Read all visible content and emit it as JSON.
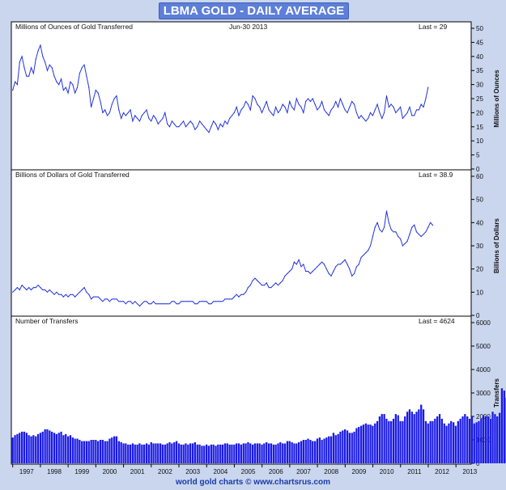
{
  "header": {
    "title": "LBMA GOLD - DAILY AVERAGE"
  },
  "footer": {
    "credit": "world gold charts © www.chartsrus.com"
  },
  "chart_data": [
    {
      "type": "line",
      "title": "Millions of Ounces of Gold Transferred",
      "subtitle": "Jun-30 2013",
      "last_label": "Last = 29",
      "ylabel": "Millions of Ounces",
      "ylim": [
        0,
        50
      ],
      "yticks": [
        0,
        5,
        10,
        15,
        20,
        25,
        30,
        35,
        40,
        45,
        50
      ],
      "x_range": [
        1996.95,
        2013.55
      ],
      "x_start": 1997.0,
      "x_step": 0.0833,
      "values": [
        28,
        31,
        30,
        38,
        40,
        36,
        33,
        33,
        36,
        34,
        39,
        42,
        44,
        40,
        38,
        35,
        37,
        36,
        33,
        31,
        30,
        32,
        28,
        29,
        27,
        31,
        30,
        27,
        29,
        34,
        36,
        37,
        33,
        29,
        22,
        25,
        28,
        27,
        24,
        20,
        21,
        19,
        20,
        23,
        25,
        26,
        21,
        18,
        20,
        19,
        20,
        21,
        17,
        19,
        18,
        17,
        19,
        20,
        21,
        18,
        17,
        19,
        18,
        16,
        17,
        18,
        20,
        16,
        15,
        17,
        16,
        15,
        15,
        16,
        17,
        15,
        16,
        17,
        16,
        14,
        15,
        17,
        16,
        15,
        14,
        13,
        15,
        17,
        16,
        14,
        16,
        15,
        17,
        16,
        18,
        19,
        20,
        22,
        19,
        21,
        22,
        24,
        23,
        21,
        26,
        25,
        23,
        22,
        20,
        22,
        24,
        21,
        20,
        19,
        22,
        20,
        21,
        23,
        22,
        20,
        24,
        22,
        21,
        25,
        23,
        22,
        20,
        24,
        25,
        24,
        25,
        23,
        21,
        22,
        24,
        21,
        20,
        19,
        21,
        22,
        24,
        22,
        25,
        23,
        21,
        20,
        22,
        24,
        23,
        20,
        18,
        19,
        18,
        17,
        18,
        20,
        19,
        21,
        23,
        20,
        18,
        20,
        26,
        22,
        23,
        22,
        20,
        21,
        22,
        18,
        19,
        20,
        22,
        19,
        19,
        21,
        21,
        23,
        22,
        25,
        29
      ]
    },
    {
      "type": "line",
      "title": "Billions of Dollars of Gold Transferred",
      "last_label": "Last = 38.9",
      "ylabel": "Billions of Dollars",
      "ylim": [
        0,
        60
      ],
      "yticks": [
        0,
        10,
        20,
        30,
        40,
        50,
        60
      ],
      "x_range": [
        1996.95,
        2013.55
      ],
      "x_start": 1997.0,
      "x_step": 0.0833,
      "values": [
        10,
        11,
        12,
        11,
        13,
        12,
        11,
        12,
        11,
        12,
        12,
        13,
        12,
        11,
        11,
        10,
        11,
        10,
        9,
        10,
        9,
        9,
        8,
        9,
        8,
        9,
        9,
        8,
        9,
        10,
        11,
        12,
        10,
        9,
        7,
        8,
        8,
        8,
        7,
        6,
        7,
        7,
        6,
        7,
        7,
        7,
        6,
        6,
        6,
        5,
        6,
        6,
        5,
        6,
        5,
        4,
        5,
        6,
        6,
        5,
        5,
        6,
        5,
        5,
        5,
        5,
        5,
        5,
        5,
        6,
        6,
        5,
        5,
        6,
        6,
        6,
        6,
        6,
        6,
        5,
        5,
        6,
        6,
        6,
        6,
        5,
        5,
        6,
        6,
        6,
        6,
        6,
        7,
        7,
        7,
        7,
        8,
        9,
        8,
        9,
        9,
        10,
        12,
        13,
        15,
        16,
        15,
        14,
        13,
        13,
        14,
        12,
        12,
        13,
        14,
        13,
        14,
        15,
        17,
        18,
        19,
        20,
        23,
        22,
        24,
        21,
        22,
        19,
        19,
        18,
        19,
        20,
        21,
        22,
        23,
        22,
        20,
        18,
        17,
        19,
        21,
        22,
        22,
        23,
        24,
        22,
        20,
        17,
        18,
        21,
        22,
        25,
        26,
        27,
        28,
        30,
        34,
        38,
        40,
        37,
        36,
        38,
        45,
        40,
        37,
        36,
        36,
        34,
        33,
        30,
        31,
        32,
        35,
        38,
        39,
        36,
        35,
        34,
        35,
        36,
        38,
        40,
        38.9
      ]
    },
    {
      "type": "bar",
      "title": "Number of Transfers",
      "last_label": "Last = 4624",
      "ylabel": "Transfers",
      "ylim": [
        0,
        6000
      ],
      "yticks": [
        0,
        1000,
        2000,
        3000,
        4000,
        5000,
        6000
      ],
      "xticks": [
        "1997",
        "1998",
        "1999",
        "2000",
        "2001",
        "2002",
        "2003",
        "2004",
        "2005",
        "2006",
        "2007",
        "2008",
        "2009",
        "2010",
        "2011",
        "2012",
        "2013"
      ],
      "x_range": [
        1996.95,
        2013.55
      ],
      "x_start": 1997.0,
      "x_step": 0.0833,
      "values": [
        1100,
        1200,
        1250,
        1300,
        1350,
        1350,
        1300,
        1200,
        1150,
        1200,
        1150,
        1250,
        1300,
        1350,
        1450,
        1450,
        1400,
        1350,
        1300,
        1250,
        1300,
        1350,
        1200,
        1250,
        1150,
        1200,
        1100,
        1050,
        1050,
        1000,
        950,
        950,
        950,
        950,
        1000,
        1000,
        1000,
        950,
        1000,
        1000,
        950,
        950,
        1050,
        1100,
        1150,
        1150,
        950,
        900,
        850,
        850,
        800,
        800,
        850,
        800,
        800,
        850,
        800,
        800,
        850,
        800,
        900,
        850,
        850,
        850,
        850,
        800,
        800,
        850,
        900,
        850,
        900,
        950,
        850,
        800,
        800,
        850,
        800,
        850,
        850,
        900,
        800,
        800,
        750,
        750,
        800,
        750,
        800,
        800,
        750,
        800,
        800,
        800,
        850,
        850,
        800,
        800,
        800,
        850,
        850,
        800,
        850,
        850,
        900,
        850,
        800,
        850,
        850,
        850,
        800,
        850,
        900,
        850,
        850,
        800,
        800,
        850,
        900,
        850,
        850,
        950,
        950,
        900,
        850,
        850,
        900,
        950,
        1000,
        1000,
        1050,
        1000,
        950,
        950,
        1050,
        1100,
        1000,
        1050,
        1100,
        1150,
        1150,
        1300,
        1200,
        1250,
        1350,
        1400,
        1450,
        1400,
        1300,
        1300,
        1350,
        1500,
        1550,
        1600,
        1650,
        1700,
        1650,
        1650,
        1600,
        1700,
        1800,
        2000,
        2100,
        2100,
        1900,
        1800,
        1800,
        1900,
        2100,
        2050,
        1800,
        1800,
        2000,
        2200,
        2300,
        2200,
        2100,
        2200,
        2300,
        2500,
        2300,
        1800,
        1700,
        1800,
        1800,
        1900,
        2000,
        2100,
        1900,
        1700,
        1600,
        1700,
        1800,
        1750,
        1600,
        1800,
        1900,
        2000,
        2100,
        2000,
        1900,
        2000,
        1700,
        1750,
        1800,
        1900,
        2050,
        2000,
        2000,
        1900,
        2200,
        2100,
        2000,
        2150,
        3200,
        3100,
        2800,
        2650,
        2300,
        2400,
        2600,
        2700,
        2800,
        3000,
        2600,
        2500,
        2700,
        2900,
        2500,
        2700,
        2800,
        2600,
        2900,
        3300,
        3400,
        3500,
        5400,
        5100,
        4624
      ]
    }
  ]
}
